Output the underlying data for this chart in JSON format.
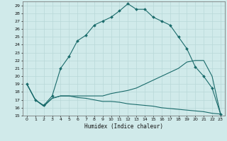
{
  "xlabel": "Humidex (Indice chaleur)",
  "ylabel": "",
  "bg_color": "#d0eaea",
  "grid_color": "#b8d8d8",
  "line_color": "#1a6b6b",
  "xlim": [
    -0.5,
    23.5
  ],
  "ylim": [
    15,
    29.5
  ],
  "xticks": [
    0,
    1,
    2,
    3,
    4,
    5,
    6,
    7,
    8,
    9,
    10,
    11,
    12,
    13,
    14,
    15,
    16,
    17,
    18,
    19,
    20,
    21,
    22,
    23
  ],
  "yticks": [
    15,
    16,
    17,
    18,
    19,
    20,
    21,
    22,
    23,
    24,
    25,
    26,
    27,
    28,
    29
  ],
  "line1_x": [
    0,
    1,
    2,
    3,
    4,
    5,
    6,
    7,
    8,
    9,
    10,
    11,
    12,
    13,
    14,
    15,
    16,
    17,
    18,
    19,
    20,
    21,
    22,
    23
  ],
  "line1_y": [
    19,
    17,
    16.3,
    17.5,
    21,
    22.5,
    24.5,
    25.2,
    26.5,
    27,
    27.5,
    28.3,
    29.2,
    28.5,
    28.5,
    27.5,
    27,
    26.5,
    25,
    23.5,
    21.2,
    20,
    18.5,
    15.2
  ],
  "line2_x": [
    0,
    1,
    2,
    3,
    4,
    5,
    6,
    7,
    8,
    9,
    10,
    11,
    12,
    13,
    14,
    15,
    16,
    17,
    18,
    19,
    20,
    21,
    22,
    23
  ],
  "line2_y": [
    19,
    17,
    16.2,
    17.2,
    17.5,
    17.5,
    17.5,
    17.5,
    17.5,
    17.5,
    17.8,
    18,
    18.2,
    18.5,
    19,
    19.5,
    20,
    20.5,
    21,
    21.8,
    22,
    22,
    20,
    15.2
  ],
  "line3_x": [
    0,
    1,
    2,
    3,
    4,
    5,
    6,
    7,
    8,
    9,
    10,
    11,
    12,
    13,
    14,
    15,
    16,
    17,
    18,
    19,
    20,
    21,
    22,
    23
  ],
  "line3_y": [
    19,
    17,
    16.2,
    17.2,
    17.5,
    17.5,
    17.3,
    17.2,
    17,
    16.8,
    16.8,
    16.7,
    16.5,
    16.4,
    16.3,
    16.2,
    16.0,
    15.9,
    15.8,
    15.7,
    15.6,
    15.5,
    15.3,
    15.2
  ]
}
